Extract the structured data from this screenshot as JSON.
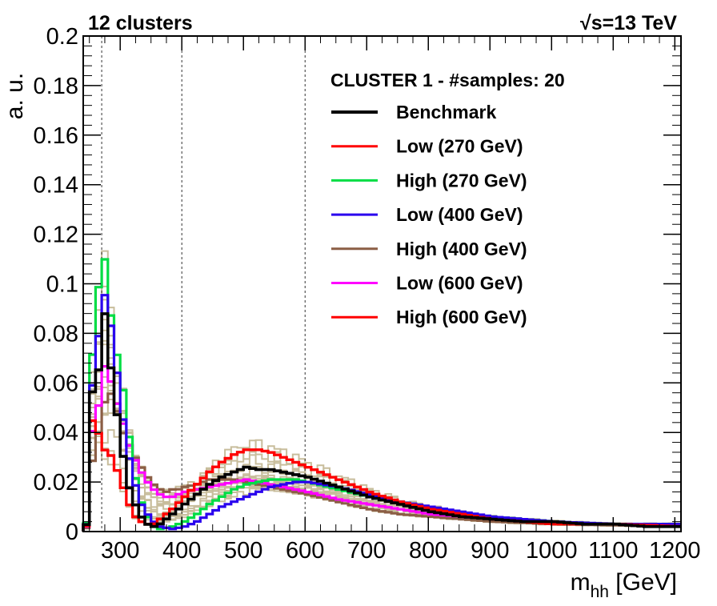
{
  "header": {
    "left": "12 clusters",
    "right_sqrt": "√",
    "right": "s=13 TeV"
  },
  "chart_data": {
    "type": "line",
    "style": "histogram-step",
    "xlabel": "m",
    "xlabel_sub": "hh",
    "xlabel_unit": " [GeV]",
    "ylabel": "a. u.",
    "xlim": [
      240,
      1210
    ],
    "ylim": [
      0,
      0.2
    ],
    "bin_width": 10,
    "x_tick_labels": [
      "300",
      "400",
      "500",
      "600",
      "700",
      "800",
      "900",
      "1000",
      "1100",
      "1200"
    ],
    "x_tick_values": [
      300,
      400,
      500,
      600,
      700,
      800,
      900,
      1000,
      1100,
      1200
    ],
    "y_tick_labels": [
      "0",
      "0.02",
      "0.04",
      "0.06",
      "0.08",
      "0.1",
      "0.12",
      "0.14",
      "0.16",
      "0.18",
      "0.2"
    ],
    "y_tick_values": [
      0,
      0.02,
      0.04,
      0.06,
      0.08,
      0.1,
      0.12,
      0.14,
      0.16,
      0.18,
      0.2
    ],
    "vertical_lines_x": [
      270,
      400,
      600
    ],
    "legend_title": "CLUSTER 1 - #samples: 20",
    "legend_placement": "top-right",
    "series": [
      {
        "name": "Benchmark",
        "color": "#000000",
        "width": 3.6,
        "knots": [
          [
            240,
            0
          ],
          [
            250,
            0.056
          ],
          [
            260,
            0.064
          ],
          [
            270,
            0.089
          ],
          [
            280,
            0.067
          ],
          [
            290,
            0.048
          ],
          [
            300,
            0.031
          ],
          [
            310,
            0.018
          ],
          [
            320,
            0.011
          ],
          [
            330,
            0.006
          ],
          [
            340,
            0.003
          ],
          [
            350,
            0.002
          ],
          [
            360,
            0.003
          ],
          [
            370,
            0.005
          ],
          [
            380,
            0.007
          ],
          [
            390,
            0.009
          ],
          [
            400,
            0.011
          ],
          [
            420,
            0.015
          ],
          [
            440,
            0.019
          ],
          [
            460,
            0.022
          ],
          [
            480,
            0.024
          ],
          [
            500,
            0.026
          ],
          [
            520,
            0.025
          ],
          [
            540,
            0.025
          ],
          [
            560,
            0.024
          ],
          [
            580,
            0.023
          ],
          [
            600,
            0.022
          ],
          [
            650,
            0.018
          ],
          [
            700,
            0.014
          ],
          [
            750,
            0.011
          ],
          [
            800,
            0.008
          ],
          [
            850,
            0.006
          ],
          [
            900,
            0.005
          ],
          [
            950,
            0.004
          ],
          [
            1000,
            0.004
          ],
          [
            1050,
            0.003
          ],
          [
            1100,
            0.003
          ],
          [
            1150,
            0.002
          ],
          [
            1210,
            0.002
          ]
        ]
      },
      {
        "name": "Low (270 GeV)",
        "color": "#ff0000",
        "width": 3.2,
        "knots": [
          [
            240,
            0
          ],
          [
            250,
            0.045
          ],
          [
            260,
            0.04
          ],
          [
            270,
            0.033
          ],
          [
            280,
            0.031
          ],
          [
            290,
            0.025
          ],
          [
            300,
            0.018
          ],
          [
            310,
            0.011
          ],
          [
            320,
            0.006
          ],
          [
            330,
            0.004
          ],
          [
            340,
            0.003
          ],
          [
            350,
            0.003
          ],
          [
            360,
            0.005
          ],
          [
            380,
            0.009
          ],
          [
            400,
            0.014
          ],
          [
            420,
            0.019
          ],
          [
            440,
            0.024
          ],
          [
            460,
            0.028
          ],
          [
            480,
            0.031
          ],
          [
            500,
            0.033
          ],
          [
            520,
            0.033
          ],
          [
            540,
            0.032
          ],
          [
            560,
            0.03
          ],
          [
            580,
            0.028
          ],
          [
            600,
            0.026
          ],
          [
            650,
            0.021
          ],
          [
            700,
            0.016
          ],
          [
            750,
            0.012
          ],
          [
            800,
            0.009
          ],
          [
            850,
            0.007
          ],
          [
            900,
            0.005
          ],
          [
            950,
            0.004
          ],
          [
            1000,
            0.003
          ],
          [
            1100,
            0.003
          ],
          [
            1210,
            0.002
          ]
        ]
      },
      {
        "name": "High (270 GeV)",
        "color": "#00dd44",
        "width": 3.2,
        "knots": [
          [
            240,
            0
          ],
          [
            250,
            0.07
          ],
          [
            260,
            0.098
          ],
          [
            270,
            0.111
          ],
          [
            280,
            0.088
          ],
          [
            290,
            0.072
          ],
          [
            300,
            0.058
          ],
          [
            310,
            0.039
          ],
          [
            320,
            0.022
          ],
          [
            330,
            0.012
          ],
          [
            340,
            0.006
          ],
          [
            350,
            0.002
          ],
          [
            360,
            0.001
          ],
          [
            380,
            0.002
          ],
          [
            400,
            0.004
          ],
          [
            420,
            0.007
          ],
          [
            440,
            0.011
          ],
          [
            460,
            0.014
          ],
          [
            480,
            0.017
          ],
          [
            500,
            0.019
          ],
          [
            520,
            0.02
          ],
          [
            540,
            0.021
          ],
          [
            560,
            0.021
          ],
          [
            580,
            0.021
          ],
          [
            600,
            0.02
          ],
          [
            650,
            0.017
          ],
          [
            700,
            0.014
          ],
          [
            750,
            0.011
          ],
          [
            800,
            0.009
          ],
          [
            850,
            0.007
          ],
          [
            900,
            0.006
          ],
          [
            950,
            0.005
          ],
          [
            1000,
            0.004
          ],
          [
            1100,
            0.003
          ],
          [
            1210,
            0.003
          ]
        ]
      },
      {
        "name": "Low (400 GeV)",
        "color": "#2a00ee",
        "width": 3.2,
        "knots": [
          [
            240,
            0
          ],
          [
            250,
            0.058
          ],
          [
            260,
            0.078
          ],
          [
            270,
            0.096
          ],
          [
            280,
            0.084
          ],
          [
            290,
            0.065
          ],
          [
            300,
            0.046
          ],
          [
            310,
            0.03
          ],
          [
            320,
            0.019
          ],
          [
            330,
            0.011
          ],
          [
            340,
            0.007
          ],
          [
            350,
            0.004
          ],
          [
            360,
            0.002
          ],
          [
            380,
            0.001
          ],
          [
            400,
            0.002
          ],
          [
            420,
            0.004
          ],
          [
            440,
            0.007
          ],
          [
            460,
            0.01
          ],
          [
            480,
            0.012
          ],
          [
            500,
            0.014
          ],
          [
            520,
            0.016
          ],
          [
            540,
            0.018
          ],
          [
            560,
            0.019
          ],
          [
            580,
            0.02
          ],
          [
            600,
            0.02
          ],
          [
            650,
            0.018
          ],
          [
            700,
            0.015
          ],
          [
            750,
            0.012
          ],
          [
            800,
            0.01
          ],
          [
            850,
            0.008
          ],
          [
            900,
            0.006
          ],
          [
            950,
            0.005
          ],
          [
            1000,
            0.004
          ],
          [
            1100,
            0.003
          ],
          [
            1210,
            0.003
          ]
        ]
      },
      {
        "name": "High (400 GeV)",
        "color": "#8b5e45",
        "width": 3.2,
        "knots": [
          [
            240,
            0
          ],
          [
            250,
            0.028
          ],
          [
            260,
            0.039
          ],
          [
            270,
            0.052
          ],
          [
            280,
            0.056
          ],
          [
            290,
            0.049
          ],
          [
            300,
            0.04
          ],
          [
            310,
            0.035
          ],
          [
            320,
            0.03
          ],
          [
            330,
            0.026
          ],
          [
            340,
            0.022
          ],
          [
            350,
            0.019
          ],
          [
            360,
            0.017
          ],
          [
            370,
            0.016
          ],
          [
            380,
            0.017
          ],
          [
            390,
            0.017
          ],
          [
            400,
            0.018
          ],
          [
            420,
            0.019
          ],
          [
            440,
            0.021
          ],
          [
            460,
            0.021
          ],
          [
            480,
            0.021
          ],
          [
            500,
            0.02
          ],
          [
            520,
            0.019
          ],
          [
            540,
            0.018
          ],
          [
            560,
            0.017
          ],
          [
            580,
            0.016
          ],
          [
            600,
            0.015
          ],
          [
            650,
            0.012
          ],
          [
            700,
            0.009
          ],
          [
            750,
            0.007
          ],
          [
            800,
            0.006
          ],
          [
            850,
            0.005
          ],
          [
            900,
            0.004
          ],
          [
            1000,
            0.003
          ],
          [
            1210,
            0.002
          ]
        ]
      },
      {
        "name": "Low (600 GeV)",
        "color": "#ff00ff",
        "width": 3.2,
        "knots": [
          [
            240,
            0
          ],
          [
            250,
            0.04
          ],
          [
            260,
            0.05
          ],
          [
            270,
            0.067
          ],
          [
            280,
            0.061
          ],
          [
            290,
            0.052
          ],
          [
            300,
            0.044
          ],
          [
            310,
            0.035
          ],
          [
            320,
            0.029
          ],
          [
            330,
            0.024
          ],
          [
            340,
            0.02
          ],
          [
            350,
            0.017
          ],
          [
            360,
            0.015
          ],
          [
            370,
            0.014
          ],
          [
            380,
            0.014
          ],
          [
            390,
            0.015
          ],
          [
            400,
            0.016
          ],
          [
            420,
            0.017
          ],
          [
            440,
            0.018
          ],
          [
            460,
            0.019
          ],
          [
            480,
            0.02
          ],
          [
            500,
            0.021
          ],
          [
            520,
            0.02
          ],
          [
            540,
            0.019
          ],
          [
            560,
            0.018
          ],
          [
            580,
            0.017
          ],
          [
            600,
            0.016
          ],
          [
            650,
            0.013
          ],
          [
            700,
            0.011
          ],
          [
            750,
            0.009
          ],
          [
            800,
            0.007
          ],
          [
            850,
            0.006
          ],
          [
            900,
            0.005
          ],
          [
            1000,
            0.004
          ],
          [
            1100,
            0.003
          ],
          [
            1210,
            0.003
          ]
        ]
      },
      {
        "name": "High (600 GeV)",
        "color": "#ff0000",
        "width": 3.2,
        "knots": [
          [
            240,
            0
          ],
          [
            250,
            0.045
          ],
          [
            260,
            0.04
          ],
          [
            270,
            0.033
          ],
          [
            280,
            0.031
          ],
          [
            290,
            0.025
          ],
          [
            300,
            0.018
          ],
          [
            310,
            0.011
          ],
          [
            320,
            0.006
          ],
          [
            330,
            0.004
          ],
          [
            340,
            0.003
          ],
          [
            350,
            0.003
          ],
          [
            360,
            0.005
          ],
          [
            380,
            0.009
          ],
          [
            400,
            0.014
          ],
          [
            420,
            0.019
          ],
          [
            440,
            0.024
          ],
          [
            460,
            0.028
          ],
          [
            480,
            0.031
          ],
          [
            500,
            0.033
          ],
          [
            520,
            0.033
          ],
          [
            540,
            0.032
          ],
          [
            560,
            0.03
          ],
          [
            580,
            0.028
          ],
          [
            600,
            0.026
          ],
          [
            650,
            0.021
          ],
          [
            700,
            0.016
          ],
          [
            750,
            0.012
          ],
          [
            800,
            0.009
          ],
          [
            850,
            0.007
          ],
          [
            900,
            0.005
          ],
          [
            950,
            0.004
          ],
          [
            1000,
            0.003
          ],
          [
            1100,
            0.003
          ],
          [
            1210,
            0.002
          ]
        ]
      }
    ],
    "background_samples": {
      "color": "#c8bd9c",
      "count": 14,
      "legend": false
    }
  }
}
